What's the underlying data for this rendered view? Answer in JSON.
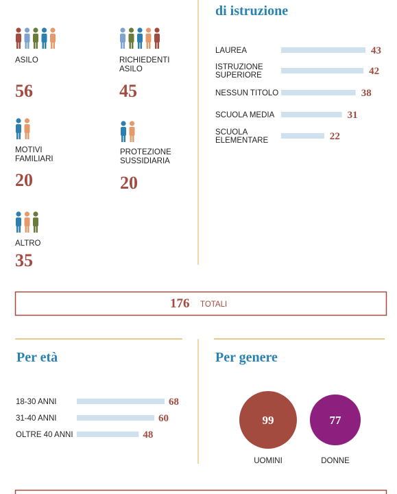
{
  "status": {
    "items": [
      {
        "lines": [
          "ASILO"
        ],
        "value": 56
      },
      {
        "lines": [
          "RICHIEDENTI",
          "ASILO"
        ],
        "value": 45
      },
      {
        "lines": [
          "MOTIVI",
          "FAMILIARI"
        ],
        "value": 20
      },
      {
        "lines": [
          "PROTEZIONE",
          "SUSSIDIARIA"
        ],
        "value": 20
      },
      {
        "lines": [
          "ALTRO"
        ],
        "value": 35
      }
    ]
  },
  "education": {
    "title": "di istruzione",
    "items": [
      {
        "lines": [
          "LAUREA"
        ],
        "value": 43
      },
      {
        "lines": [
          "ISTRUZIONE",
          "SUPERIORE"
        ],
        "value": 42
      },
      {
        "lines": [
          "NESSUN TITOLO"
        ],
        "value": 38
      },
      {
        "lines": [
          "SCUOLA MEDIA"
        ],
        "value": 31
      },
      {
        "lines": [
          "SCUOLA",
          "ELEMENTARE"
        ],
        "value": 22
      }
    ]
  },
  "total": {
    "value": 176,
    "label": "TOTALI"
  },
  "age": {
    "title": "Per età",
    "items": [
      {
        "label": "18-30 ANNI",
        "value": 68
      },
      {
        "label": "31-40 ANNI",
        "value": 60
      },
      {
        "label": "OLTRE 40 ANNI",
        "value": 48
      }
    ]
  },
  "gender": {
    "title": "Per genere",
    "items": [
      {
        "label": "UOMINI",
        "value": 99,
        "color": "#a44b40"
      },
      {
        "label": "DONNE",
        "value": 77,
        "color": "#8d1f7f"
      }
    ]
  }
}
